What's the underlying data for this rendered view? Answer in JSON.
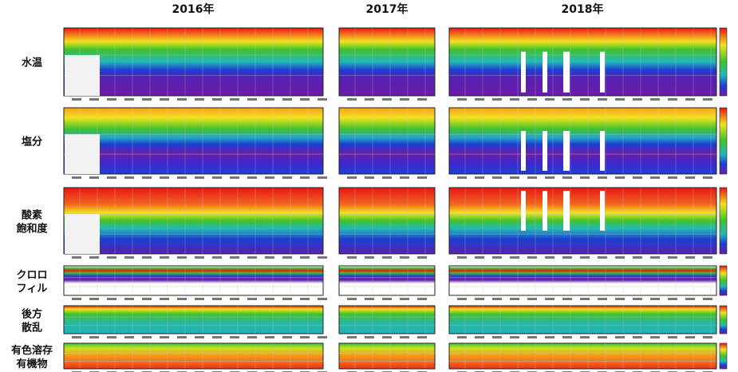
{
  "header": {
    "years": [
      "2016年",
      "2017年",
      "2018年"
    ]
  },
  "rows": [
    {
      "label": [
        "水温"
      ]
    },
    {
      "label": [
        "塩分"
      ]
    },
    {
      "label": [
        "酸素",
        "飽和度"
      ]
    },
    {
      "label": [
        "クロロ",
        "フィル"
      ]
    },
    {
      "label": [
        "後方",
        "散乱"
      ]
    },
    {
      "label": [
        "有色溶存",
        "有機物"
      ]
    }
  ]
}
